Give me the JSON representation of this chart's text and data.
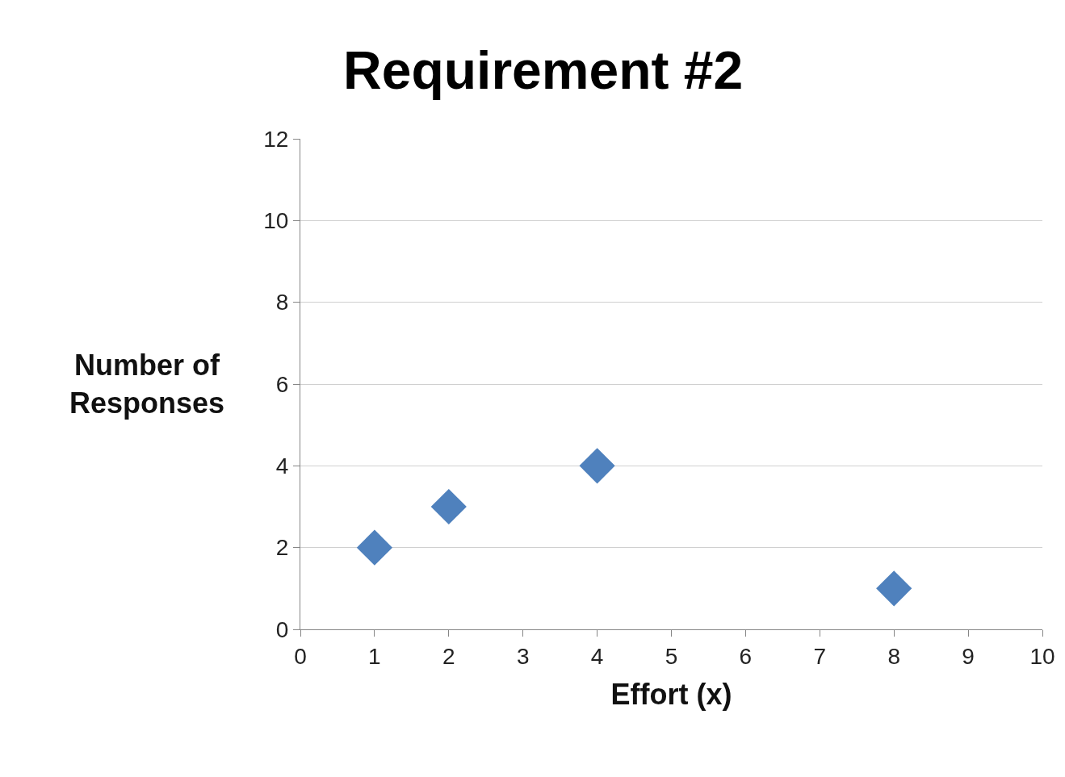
{
  "chart_data": {
    "type": "scatter",
    "title": "Requirement #2",
    "xlabel": "Effort (x)",
    "ylabel": "Number of Responses",
    "x": [
      1,
      2,
      4,
      8
    ],
    "series": [
      {
        "color": "#4f81bd",
        "values": [
          2,
          3,
          4,
          1
        ]
      }
    ],
    "xlim": [
      0,
      10
    ],
    "xticks": [
      0,
      1,
      2,
      3,
      4,
      5,
      6,
      7,
      8,
      9,
      10
    ],
    "ylim": [
      0,
      12
    ],
    "yticks": [
      0,
      2,
      4,
      6,
      8,
      10,
      12
    ],
    "grid": "y",
    "legend": false,
    "marker": "diamond"
  }
}
